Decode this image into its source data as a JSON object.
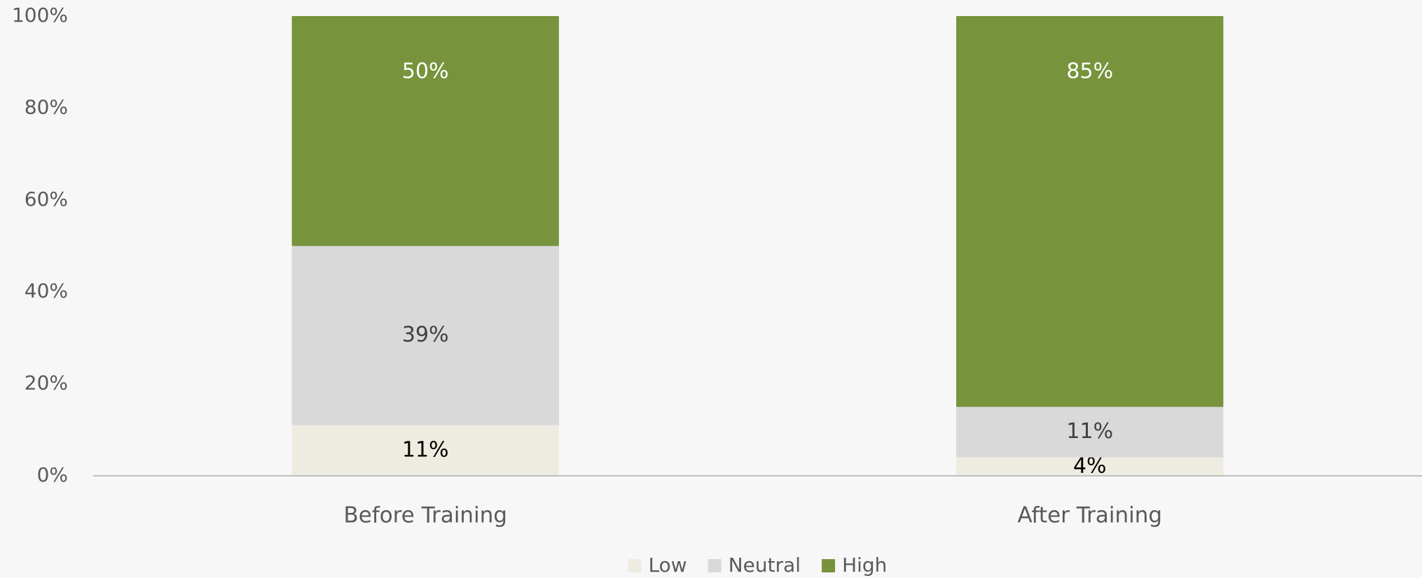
{
  "chart_data": {
    "type": "stacked_bar",
    "categories": [
      "Before Training",
      "After Training"
    ],
    "series": [
      {
        "name": "Low",
        "color": "#eeece1",
        "label_color": "#000000",
        "values": [
          11,
          4
        ],
        "value_labels": [
          "11%",
          "4%"
        ]
      },
      {
        "name": "Neutral",
        "color": "#d9d9d9",
        "label_color": "#404040",
        "values": [
          39,
          11
        ],
        "value_labels": [
          "39%",
          "11%"
        ]
      },
      {
        "name": "High",
        "color": "#77933c",
        "label_color": "#ffffff",
        "values": [
          50,
          85
        ],
        "value_labels": [
          "50%",
          "85%"
        ]
      }
    ],
    "ylim": [
      0,
      100
    ],
    "yticks": [
      {
        "value": 0,
        "label": "0%"
      },
      {
        "value": 20,
        "label": "20%"
      },
      {
        "value": 40,
        "label": "40%"
      },
      {
        "value": 60,
        "label": "60%"
      },
      {
        "value": 80,
        "label": "80%"
      },
      {
        "value": 100,
        "label": "100%"
      }
    ],
    "grid": false,
    "legend": "bottom"
  }
}
